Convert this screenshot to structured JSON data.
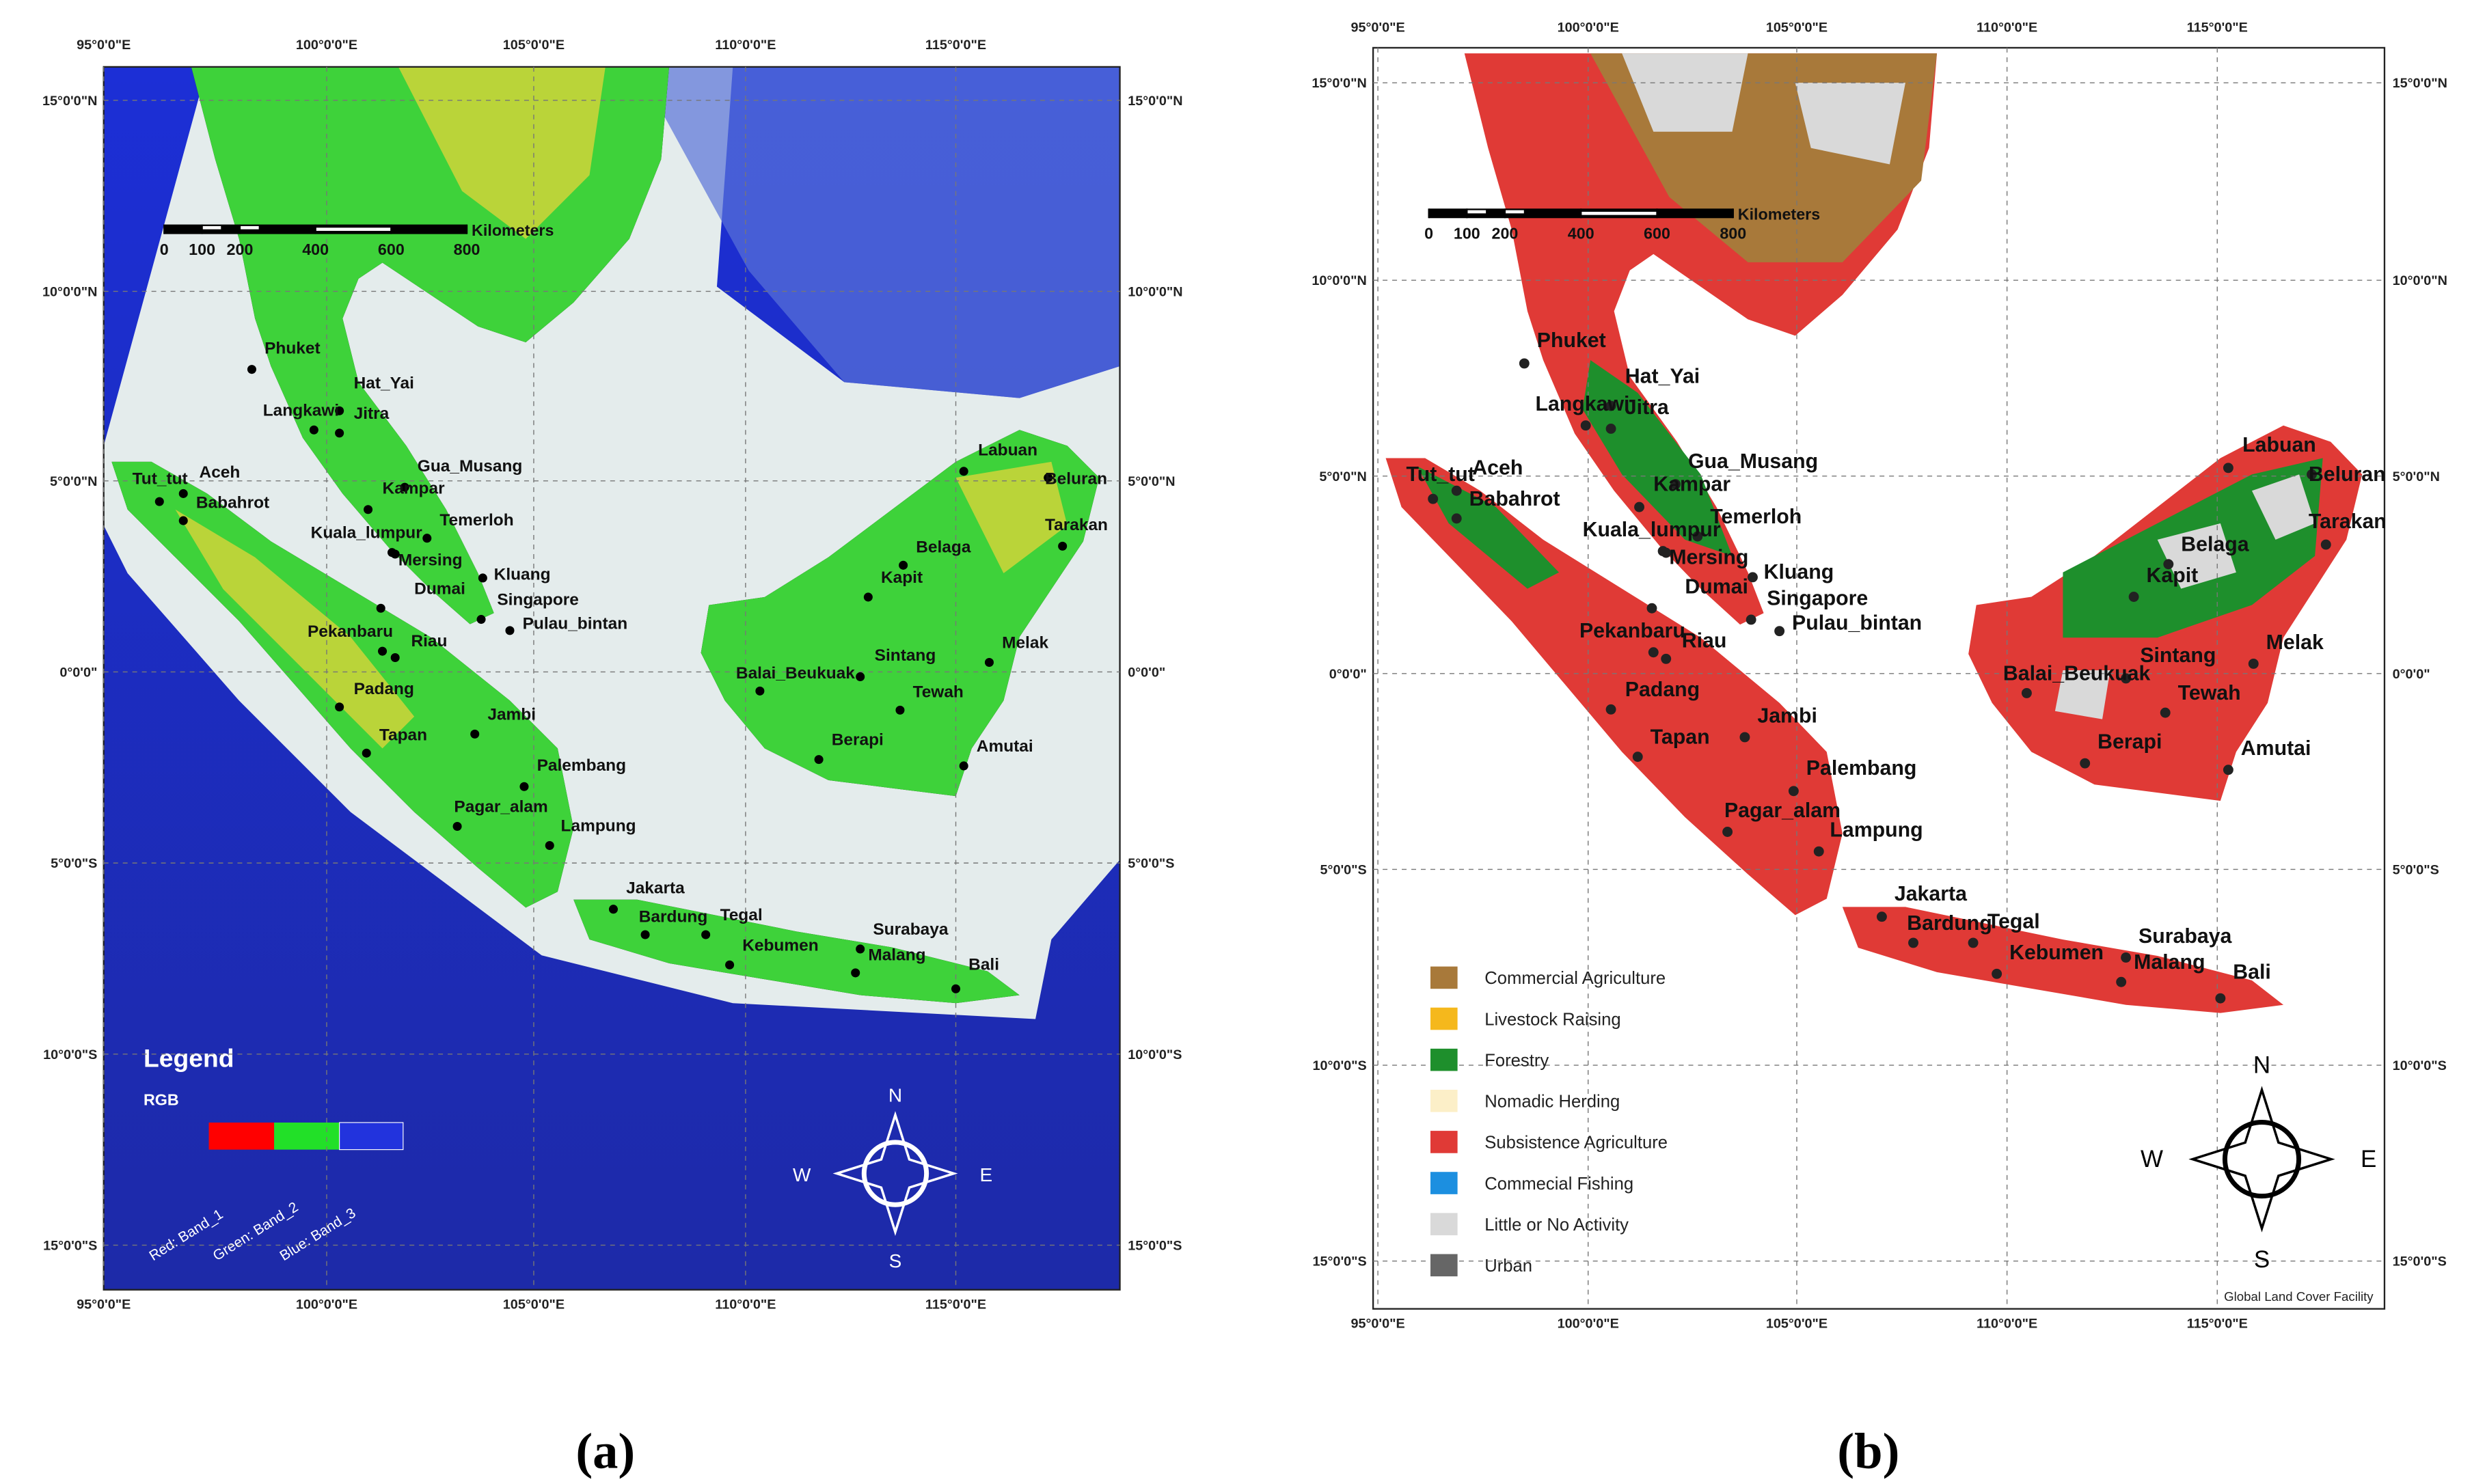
{
  "panels": [
    {
      "label": "(a)",
      "legend": {
        "title": "Legend",
        "subtitle": "RGB",
        "bands": [
          "Red:  Band_1",
          "Green: Band_2",
          "Blue:  Band_3"
        ]
      }
    },
    {
      "label": "(b)",
      "legend": {
        "items": [
          {
            "name": "Commercial Agriculture",
            "color": "#a8793a"
          },
          {
            "name": "Livestock Raising",
            "color": "#f5b81c"
          },
          {
            "name": "Forestry",
            "color": "#1e8f2c"
          },
          {
            "name": "Nomadic Herding",
            "color": "#fcefc8"
          },
          {
            "name": "Subsistence Agriculture",
            "color": "#e03a36"
          },
          {
            "name": "Commecial Fishing",
            "color": "#1c8fe0"
          },
          {
            "name": "Little or No Activity",
            "color": "#d9d9d9"
          },
          {
            "name": "Urban",
            "color": "#666666"
          }
        ]
      },
      "credit": "Global Land Cover Facility"
    }
  ],
  "lon_ticks": [
    "95°0'0\"E",
    "100°0'0\"E",
    "105°0'0\"E",
    "110°0'0\"E",
    "115°0'0\"E"
  ],
  "lat_ticks": [
    "15°0'0\"N",
    "10°0'0\"N",
    "5°0'0\"N",
    "0°0'0\"",
    "5°0'0\"S",
    "10°0'0\"S",
    "15°0'0\"S"
  ],
  "scale_bar": {
    "ticks": [
      0,
      100,
      200,
      400,
      600,
      800
    ],
    "unit": "Kilometers"
  },
  "compass": {
    "n": "N",
    "s": "S",
    "w": "W",
    "e": "E"
  },
  "cities": [
    "Phuket",
    "Hat_Yai",
    "Langkawi",
    "Jitra",
    "Gua_Musang",
    "Kampar",
    "Temerloh",
    "Kuala_lumpur",
    "Mersing",
    "Kluang",
    "Dumai",
    "Singapore",
    "Pulau_bintan",
    "Pekanbaru",
    "Riau",
    "Padang",
    "Jambi",
    "Tapan",
    "Palembang",
    "Pagar_alam",
    "Lampung",
    "Aceh",
    "Tut_tut",
    "Babahrot",
    "Jakarta",
    "Bardung",
    "Tegal",
    "Kebumen",
    "Surabaya",
    "Malang",
    "Bali",
    "Labuan",
    "Beluran",
    "Tarakan",
    "Belaga",
    "Kapit",
    "Sintang",
    "Melak",
    "Balai_Beukuak",
    "Tewah",
    "Berapi",
    "Amutai"
  ]
}
